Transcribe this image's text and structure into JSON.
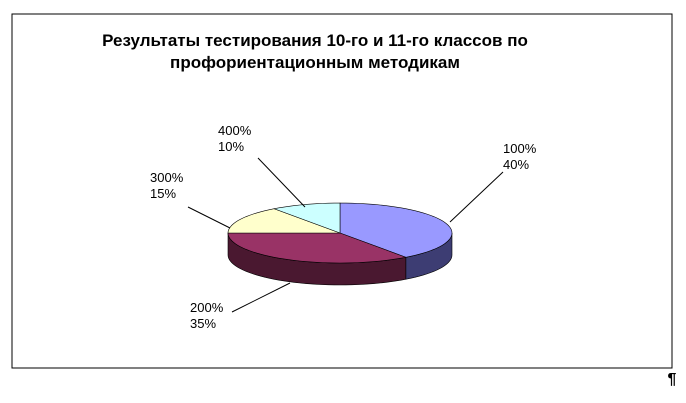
{
  "chart_data": {
    "type": "pie3d",
    "title": "Результаты тестирования 10-го и 11-го классов по профориентационным методикам",
    "categories": [
      "100%",
      "200%",
      "300%",
      "400%"
    ],
    "values": [
      40,
      35,
      15,
      10
    ],
    "value_labels": [
      "40%",
      "35%",
      "15%",
      "10%"
    ],
    "colors": [
      "#9999ff",
      "#993366",
      "#ffffcc",
      "#ccffff"
    ],
    "side_colors": [
      "#3d3d73",
      "#4a1830",
      "#b3b38f",
      "#8fb3b3"
    ]
  },
  "pilcrow": "¶"
}
